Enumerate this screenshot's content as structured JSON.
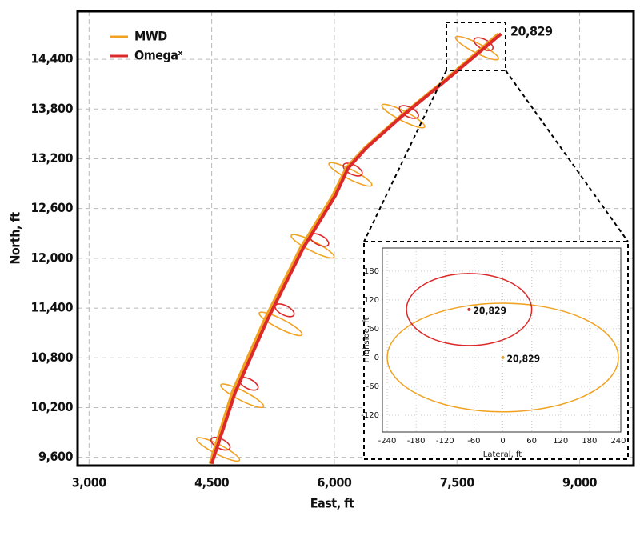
{
  "chart_data": [
    {
      "type": "line",
      "xlabel": "East, ft",
      "ylabel": "North, ft",
      "xlim": [
        2860,
        9660
      ],
      "xticks": [
        {
          "value": 3000,
          "label": "3,000"
        },
        {
          "value": 4500,
          "label": "4,500"
        },
        {
          "value": 6000,
          "label": "6,000"
        },
        {
          "value": 7500,
          "label": "7,500"
        },
        {
          "value": 9000,
          "label": "9,000"
        }
      ],
      "ylim": [
        9500,
        14980
      ],
      "yticks": [
        {
          "value": 9600,
          "label": "9,600"
        },
        {
          "value": 10200,
          "label": "10,200"
        },
        {
          "value": 10800,
          "label": "10,800"
        },
        {
          "value": 11400,
          "label": "11,400"
        },
        {
          "value": 12000,
          "label": "12,000"
        },
        {
          "value": 12600,
          "label": "12,600"
        },
        {
          "value": 13200,
          "label": "13,200"
        },
        {
          "value": 13800,
          "label": "13,800"
        },
        {
          "value": 14400,
          "label": "14,400"
        }
      ],
      "grid": true,
      "legend": "upper left",
      "annotation": "20,829",
      "series": [
        {
          "name": "MWD",
          "color": "#f0a220",
          "x": [
            4480,
            4755,
            5147,
            5588,
            5980,
            6147,
            6373,
            6814,
            7353,
            8010
          ],
          "values": [
            9523,
            10390,
            11257,
            12125,
            12752,
            13089,
            13330,
            13716,
            14149,
            14708
          ],
          "ellipses": {
            "x": [
              4578,
              4873,
              5343,
              5735,
              6196,
              6843,
              7745
            ],
            "y": [
              9696,
              10342,
              11210,
              12145,
              13012,
              13716,
              14535
            ]
          }
        },
        {
          "name": "Omegaˣ",
          "color": "#dc2a2a",
          "x": [
            4500,
            4790,
            5180,
            5620,
            6010,
            6170,
            6390,
            6830,
            7370,
            8040
          ],
          "values": [
            9523,
            10390,
            11257,
            12125,
            12752,
            13089,
            13330,
            13716,
            14149,
            14708
          ],
          "ellipses": {
            "x": [
              4608,
              4951,
              5392,
              5814,
              6225,
              6912,
              7824
            ],
            "y": [
              9764,
              10487,
              11373,
              12222,
              13070,
              13764,
              14583
            ]
          }
        }
      ]
    },
    {
      "type": "ellipse",
      "xlabel": "Lateral, ft",
      "ylabel": "Highside, ft",
      "xlim": [
        -250,
        245
      ],
      "xticks": [
        -240,
        -180,
        -120,
        -60,
        0,
        60,
        120,
        180,
        240
      ],
      "ylim": [
        -155,
        228
      ],
      "yticks": [
        -120,
        -60,
        0,
        60,
        120,
        180
      ],
      "grid": true,
      "series": [
        {
          "color": "#f0a220",
          "x": [
            0
          ],
          "values": [
            0
          ],
          "rx": [
            240
          ],
          "ry": [
            113
          ],
          "point_labels": [
            "20,829"
          ]
        },
        {
          "color": "#dc2a2a",
          "x": [
            -70
          ],
          "values": [
            100
          ],
          "rx": [
            130
          ],
          "ry": [
            75
          ],
          "point_labels": [
            "20,829"
          ]
        }
      ]
    }
  ]
}
